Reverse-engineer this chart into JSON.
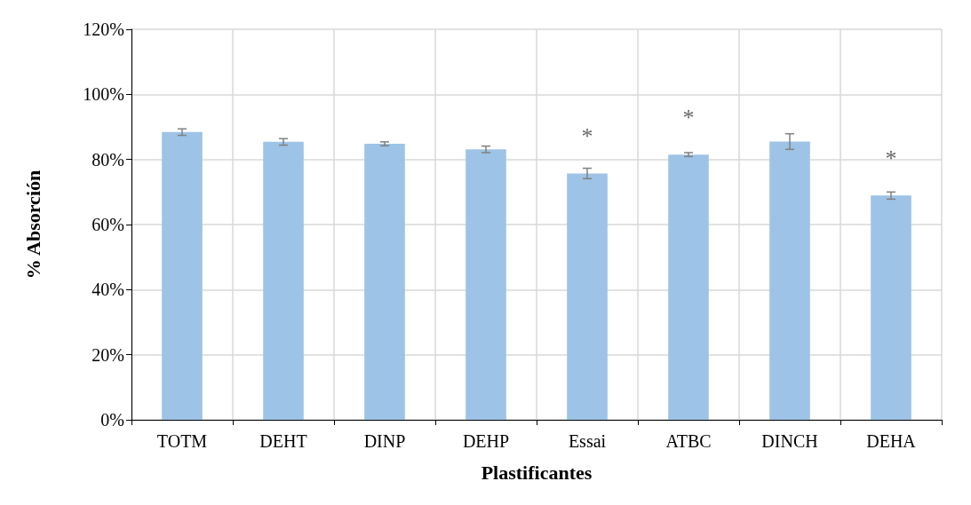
{
  "chart_data": {
    "type": "bar",
    "xlabel": "Plastificantes",
    "ylabel": "% Absorción",
    "categories": [
      "TOTM",
      "DEHT",
      "DINP",
      "DEHP",
      "Essai",
      "ATBC",
      "DINCH",
      "DEHA"
    ],
    "values": [
      88.4,
      85.4,
      84.8,
      83.1,
      75.7,
      81.5,
      85.5,
      68.9
    ],
    "errors": [
      1.0,
      1.0,
      0.6,
      1.0,
      1.6,
      0.6,
      2.4,
      1.1
    ],
    "color": "#9dc3e6",
    "ylim": [
      0,
      120
    ],
    "yticks": [
      {
        "value": 0,
        "label": "0%"
      },
      {
        "value": 20,
        "label": "20%"
      },
      {
        "value": 40,
        "label": "40%"
      },
      {
        "value": 60,
        "label": "60%"
      },
      {
        "value": 80,
        "label": "80%"
      },
      {
        "value": 100,
        "label": "100%"
      },
      {
        "value": 120,
        "label": "120%"
      }
    ],
    "grid": true,
    "annotations": [
      {
        "text": "*",
        "x": "Essai",
        "y": 75.7
      },
      {
        "text": "*",
        "x": "ATBC",
        "y": 81.5
      },
      {
        "text": "*",
        "x": "DEHA",
        "y": 68.9
      }
    ]
  }
}
